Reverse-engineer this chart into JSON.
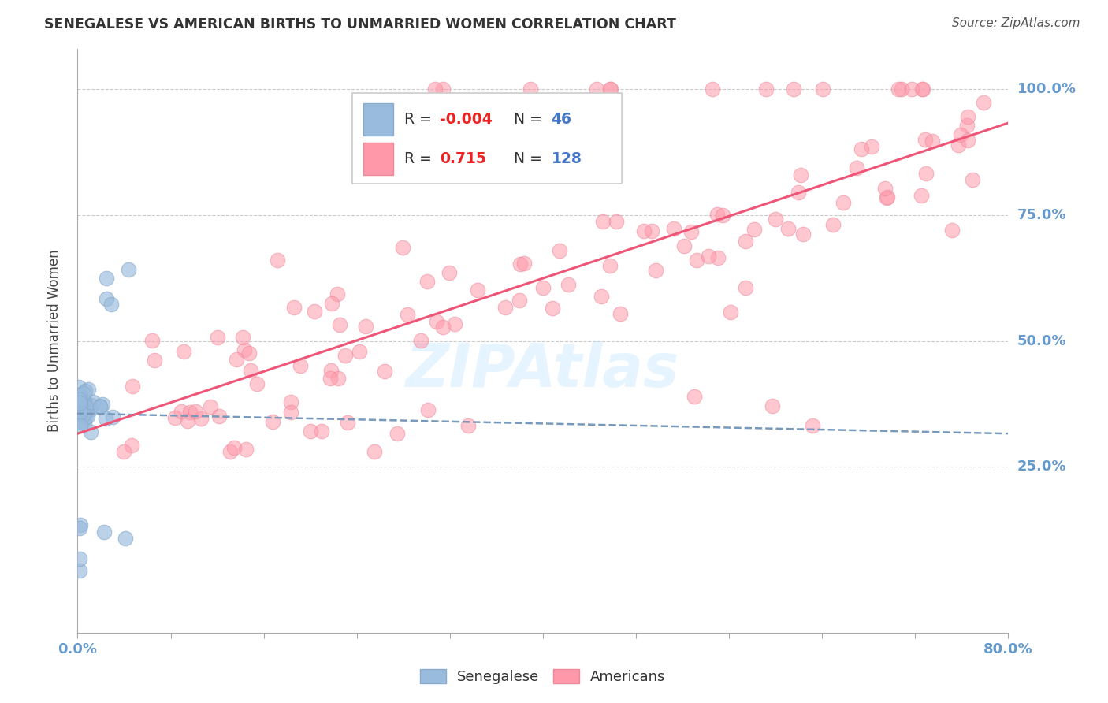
{
  "title": "SENEGALESE VS AMERICAN BIRTHS TO UNMARRIED WOMEN CORRELATION CHART",
  "source": "Source: ZipAtlas.com",
  "ylabel": "Births to Unmarried Women",
  "xlim": [
    0.0,
    0.8
  ],
  "ylim": [
    -0.08,
    1.08
  ],
  "ytick_labels": [
    "25.0%",
    "50.0%",
    "75.0%",
    "100.0%"
  ],
  "ytick_values": [
    0.25,
    0.5,
    0.75,
    1.0
  ],
  "blue_color": "#99BBDD",
  "blue_edge": "#88AACC",
  "pink_color": "#FF99AA",
  "pink_edge": "#EE8899",
  "trend_blue_color": "#7799BB",
  "trend_pink_color": "#EE5577",
  "watermark": "ZIPAtlas",
  "background_color": "#FFFFFF",
  "grid_color": "#CCCCCC",
  "axis_color": "#AAAAAA",
  "label_color": "#6699CC",
  "title_color": "#333333",
  "source_color": "#555555",
  "legend_r_color": "#EE2222",
  "legend_n_color": "#4477CC"
}
